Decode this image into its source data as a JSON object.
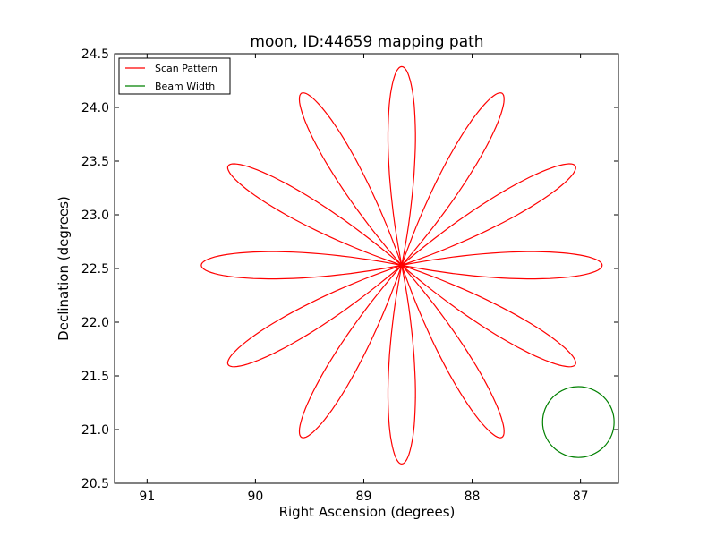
{
  "chart_data": {
    "type": "line",
    "title": "moon, ID:44659 mapping path",
    "xlabel": "Right Ascension (degrees)",
    "ylabel": "Declination (degrees)",
    "xlim": [
      91.3,
      86.65
    ],
    "ylim": [
      20.5,
      24.5
    ],
    "x_ticks": [
      91,
      90,
      89,
      88,
      87
    ],
    "y_ticks": [
      "20.5",
      "21.0",
      "21.5",
      "22.0",
      "22.5",
      "23.0",
      "23.5",
      "24.0",
      "24.5"
    ],
    "grid": false,
    "legend_placement": "top-left",
    "legend": [
      {
        "label": "Scan Pattern",
        "color": "#ff0000"
      },
      {
        "label": "Beam Width",
        "color": "#008000"
      }
    ],
    "series": [
      {
        "name": "Scan Pattern",
        "color": "#ff0000",
        "pattern": "rose",
        "center": [
          88.65,
          22.53
        ],
        "petals": 12,
        "petal_angle_start_deg": 90,
        "radius_max": 1.85,
        "half_angle_deg": 11
      },
      {
        "name": "Beam Width",
        "color": "#008000",
        "shape": "circle",
        "center": [
          87.02,
          21.07
        ],
        "radius": 0.33
      }
    ]
  }
}
